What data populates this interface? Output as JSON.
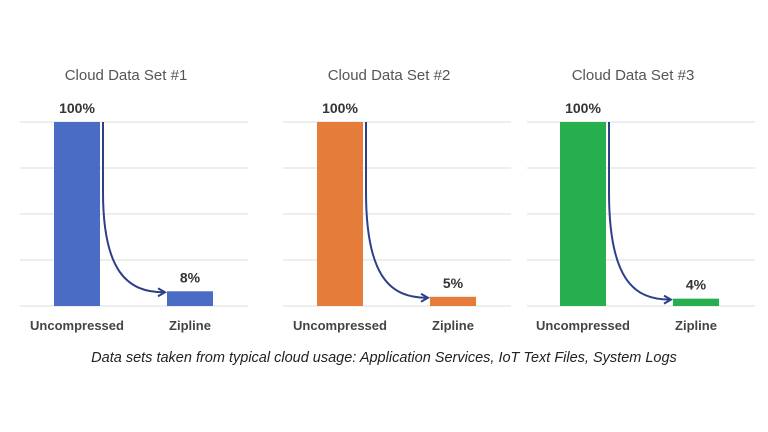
{
  "chart_data": [
    {
      "type": "bar",
      "title": "Cloud Data Set #1",
      "categories": [
        "Uncompressed",
        "Zipline"
      ],
      "values": [
        100,
        8
      ],
      "value_labels": [
        "100%",
        "8%"
      ],
      "color": "#4a6cc5",
      "ylim": [
        0,
        100
      ],
      "grid": true
    },
    {
      "type": "bar",
      "title": "Cloud Data Set #2",
      "categories": [
        "Uncompressed",
        "Zipline"
      ],
      "values": [
        100,
        5
      ],
      "value_labels": [
        "100%",
        "5%"
      ],
      "color": "#e67c3a",
      "ylim": [
        0,
        100
      ],
      "grid": true
    },
    {
      "type": "bar",
      "title": "Cloud Data Set #3",
      "categories": [
        "Uncompressed",
        "Zipline"
      ],
      "values": [
        100,
        4
      ],
      "value_labels": [
        "100%",
        "4%"
      ],
      "color": "#27ae4e",
      "ylim": [
        0,
        100
      ],
      "grid": true
    }
  ],
  "arrow_color": "#2e3f8a",
  "caption": "Data sets taken from typical cloud usage:  Application Services, IoT Text Files, System Logs"
}
